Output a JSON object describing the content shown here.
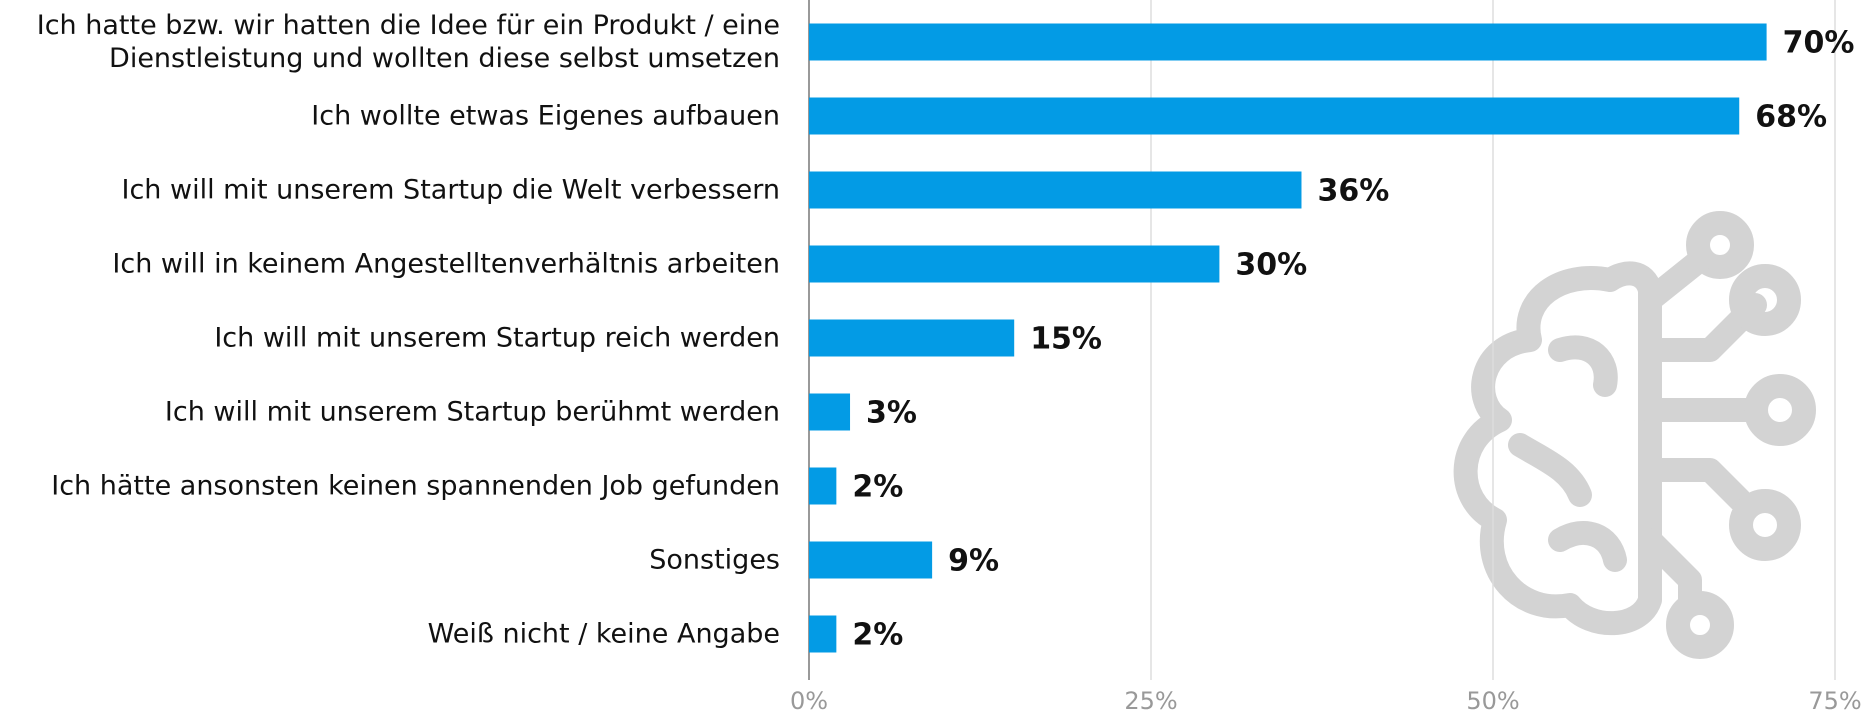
{
  "chart_data": {
    "type": "hbar",
    "categories": [
      "Ich hatte bzw. wir hatten die Idee für ein Produkt / eine\nDienstleistung und wollten diese selbst umsetzen",
      "Ich wollte etwas Eigenes aufbauen",
      "Ich will mit unserem Startup die Welt verbessern",
      "Ich will in keinem Angestelltenverhältnis arbeiten",
      "Ich will mit unserem Startup reich werden",
      "Ich will mit unserem Startup berühmt werden",
      "Ich hätte ansonsten keinen spannenden Job gefunden",
      "Sonstiges",
      "Weiß nicht / keine Angabe"
    ],
    "values": [
      70,
      68,
      36,
      30,
      15,
      3,
      2,
      9,
      2
    ],
    "value_labels": [
      "70%",
      "68%",
      "36%",
      "30%",
      "15%",
      "3%",
      "2%",
      "9%",
      "2%"
    ],
    "color": "#039be5",
    "xlim": [
      0,
      75
    ],
    "xticks": [
      {
        "value": 0,
        "label": "0%"
      },
      {
        "value": 25,
        "label": "25%"
      },
      {
        "value": 50,
        "label": "50%"
      },
      {
        "value": 75,
        "label": "75%"
      }
    ],
    "grid": true
  }
}
